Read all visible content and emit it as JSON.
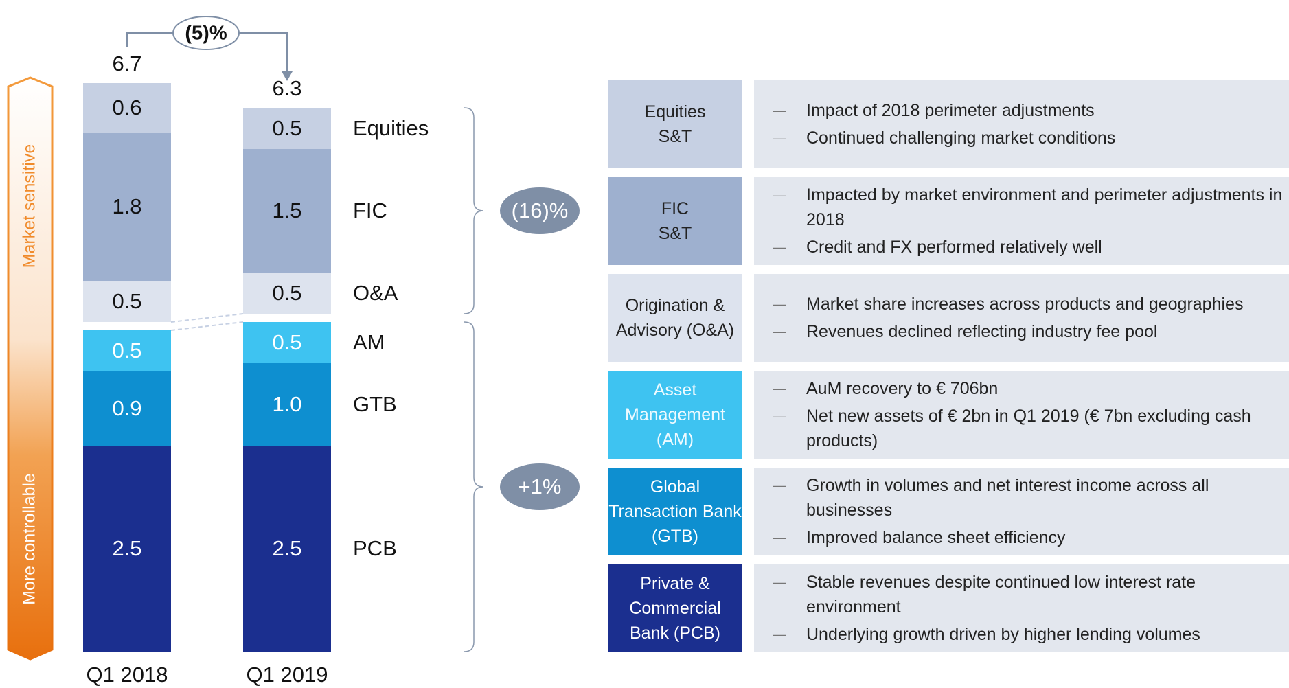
{
  "chart_data": {
    "type": "stacked_bar",
    "categories": [
      "Q1 2018",
      "Q1 2019"
    ],
    "series": [
      {
        "name": "PCB",
        "color": "#1b2f8f",
        "values": [
          2.5,
          2.5
        ]
      },
      {
        "name": "GTB",
        "color": "#0e8fd0",
        "values": [
          0.9,
          1.0
        ],
        "value_labels": [
          "0.9",
          "1.0"
        ]
      },
      {
        "name": "AM",
        "color": "#3ec3f1",
        "values": [
          0.5,
          0.5
        ]
      },
      {
        "name": "O&A",
        "color": "#dde3ee",
        "values": [
          0.5,
          0.5
        ]
      },
      {
        "name": "FIC",
        "color": "#9eb0cf",
        "values": [
          1.8,
          1.5
        ]
      },
      {
        "name": "Equities",
        "color": "#c6d0e3",
        "values": [
          0.6,
          0.5
        ]
      }
    ],
    "totals": [
      6.7,
      6.3
    ],
    "change_label": "(5)%",
    "group_labels": [
      "(16)%",
      "+1%"
    ],
    "arrow_labels": [
      "Market sensitive",
      "More controllable"
    ]
  },
  "table": {
    "rows": [
      {
        "label": "Equities\nS&T",
        "bullets": [
          "Impact of 2018 perimeter adjustments",
          "Continued challenging market conditions"
        ]
      },
      {
        "label": "FIC\nS&T",
        "bullets": [
          "Impacted by market environment and perimeter adjustments in 2018",
          "Credit and FX performed relatively well"
        ]
      },
      {
        "label": "Origination & Advisory (O&A)",
        "bullets": [
          "Market share increases across products and geographies",
          "Revenues declined reflecting industry fee pool"
        ]
      },
      {
        "label": "Asset Management (AM)",
        "bullets": [
          "AuM recovery to € 706bn",
          "Net new assets of € 2bn in Q1 2019 (€ 7bn excluding cash products)"
        ]
      },
      {
        "label": "Global Transaction Bank (GTB)",
        "bullets": [
          "Growth in volumes and net interest income across all businesses",
          "Improved balance sheet efficiency"
        ]
      },
      {
        "label": "Private & Commercial Bank (PCB)",
        "bullets": [
          "Stable revenues despite continued low interest rate environment",
          "Underlying growth driven by higher lending volumes"
        ]
      }
    ]
  }
}
